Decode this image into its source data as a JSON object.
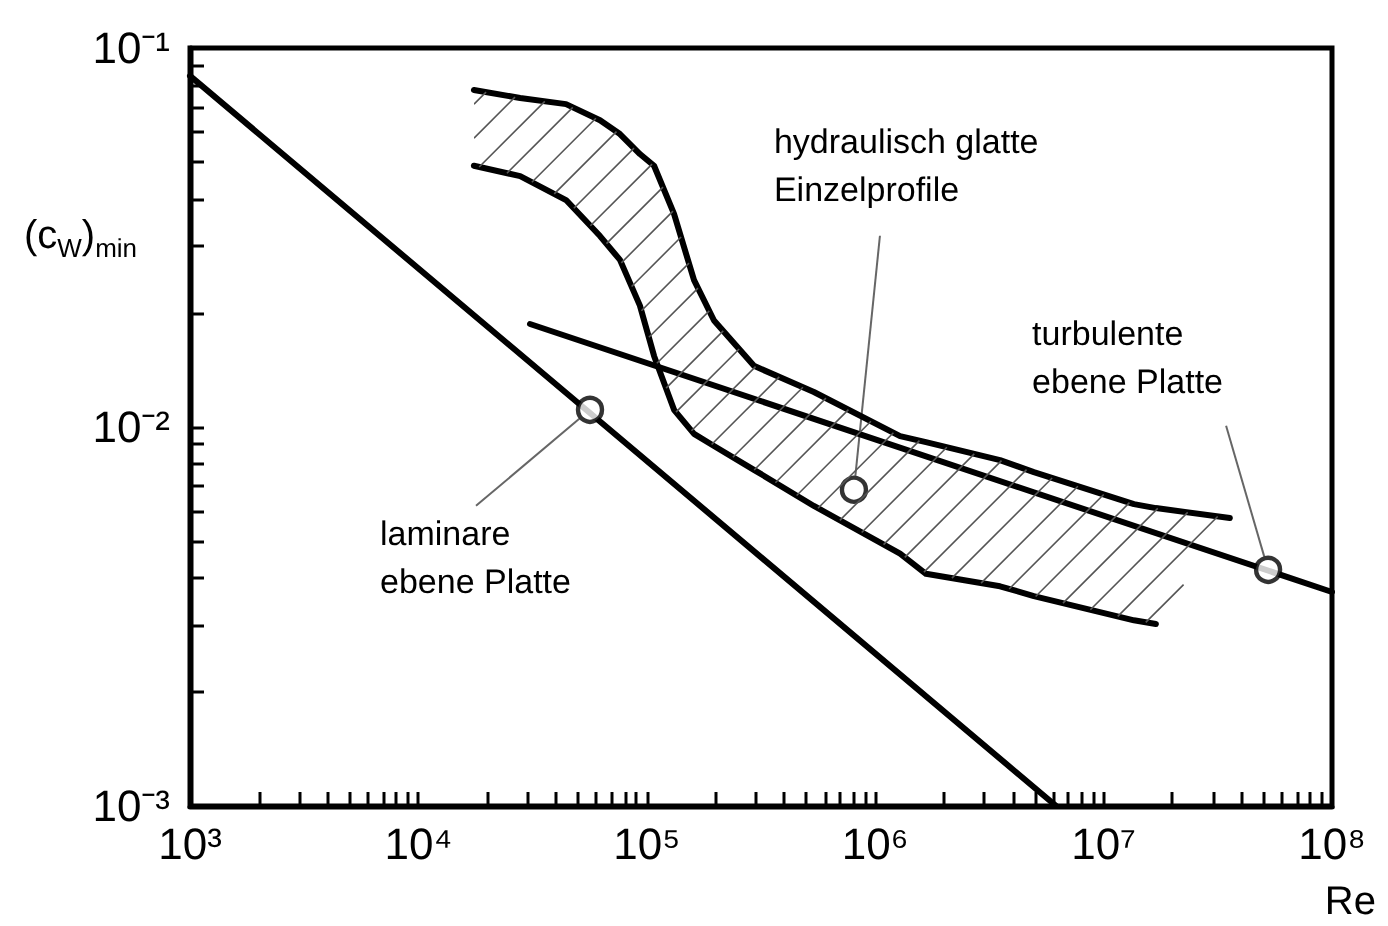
{
  "chart_data": {
    "type": "line",
    "xlabel": "Re",
    "ylabel": "(c$_{W}$)$_{min}$",
    "log": "xy",
    "grid": false,
    "xlim": [
      1000,
      100000000
    ],
    "ylim": [
      0.001,
      0.1
    ],
    "xticks": [
      {
        "value": 1000,
        "label": "10³"
      },
      {
        "value": 10000,
        "label": "10⁴"
      },
      {
        "value": 100000,
        "label": "10⁵"
      },
      {
        "value": 1000000,
        "label": "10⁶"
      },
      {
        "value": 10000000,
        "label": "10⁷"
      },
      {
        "value": 100000000,
        "label": "10⁸"
      }
    ],
    "yticks": [
      {
        "value": 0.001,
        "label": "10⁻³"
      },
      {
        "value": 0.01,
        "label": "10⁻²"
      },
      {
        "value": 0.1,
        "label": "10⁻¹"
      }
    ],
    "series": [
      {
        "type": "line",
        "color": "#000000",
        "x": [
          1000,
          6200000
        ],
        "values": [
          0.0844,
          0.001
        ]
      },
      {
        "type": "line",
        "color": "#000000",
        "x": [
          30800,
          100000000
        ],
        "values": [
          0.0187,
          0.00367
        ]
      },
      {
        "type": "line",
        "color": "#000000",
        "x": [
          17500,
          27900,
          44300,
          62400,
          76300,
          93300,
          107600,
          131600,
          161000,
          196900,
          294500,
          539000,
          1285000,
          1668000,
          3520000,
          4950000,
          13580000,
          16940000,
          35700000
        ],
        "values": [
          0.0775,
          0.0738,
          0.0711,
          0.0645,
          0.0593,
          0.0525,
          0.0489,
          0.0365,
          0.0244,
          0.0191,
          0.0145,
          0.01237,
          0.00946,
          0.00912,
          0.00818,
          0.0076,
          0.00626,
          0.00611,
          0.00575
        ]
      },
      {
        "type": "line",
        "color": "#000000",
        "x": [
          17500,
          27900,
          44300,
          62400,
          76300,
          93300,
          107600,
          131600,
          161000,
          196900,
          294500,
          539000,
          1285000,
          1668000,
          3520000,
          4950000,
          13580000,
          16940000
        ],
        "values": [
          0.0489,
          0.0459,
          0.0397,
          0.0319,
          0.0276,
          0.0209,
          0.0154,
          0.0111,
          0.00959,
          0.00891,
          0.00771,
          0.00619,
          0.00463,
          0.0041,
          0.0038,
          0.00358,
          0.00309,
          0.00302
        ]
      },
      {
        "type": "scatter",
        "marker": "circle",
        "color": "#000000",
        "x": [
          56400,
          807000,
          52500000
        ],
        "values": [
          0.0111,
          0.00683,
          0.0042
        ]
      }
    ],
    "annotations": [
      {
        "text": "laminare\nebene Platte",
        "x": 56400,
        "y": 0.0111
      },
      {
        "text": "hydraulisch glatte\nEinzelprofile",
        "x": 807000,
        "y": 0.00683
      },
      {
        "text": "turbulente\nebene Platte",
        "x": 52500000,
        "y": 0.0042
      }
    ]
  }
}
